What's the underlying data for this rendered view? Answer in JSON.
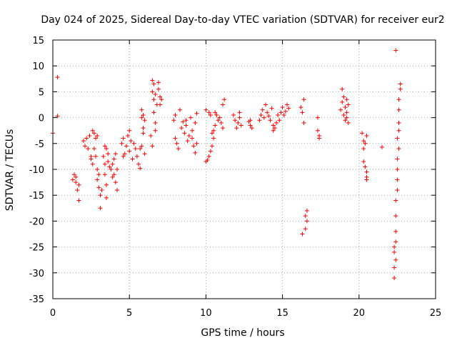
{
  "chart_data": {
    "type": "scatter",
    "title": "Day 024 of 2025, Sidereal Day-to-day VTEC variation (SDTVAR) for receiver eur2",
    "xlabel": "GPS time / hours",
    "ylabel": "SDTVAR / TECUs",
    "xlim": [
      0,
      25
    ],
    "ylim": [
      -35,
      15
    ],
    "xticks": [
      0,
      5,
      10,
      15,
      20,
      25
    ],
    "xtick_labels": [
      "0",
      "5",
      "10",
      "15",
      "20",
      "25"
    ],
    "yticks": [
      15,
      10,
      5,
      0,
      -5,
      -10,
      -15,
      -20,
      -25,
      -30,
      -35
    ],
    "ytick_labels": [
      "15",
      "10",
      "5",
      "0",
      "-5",
      "-10",
      "-15",
      "-20",
      "-25",
      "-30",
      "-35"
    ],
    "grid": true,
    "marker": "+",
    "color": "#ff0000",
    "series": [
      {
        "name": "SDTVAR",
        "points": [
          [
            0.0,
            -3.0
          ],
          [
            0.3,
            7.8
          ],
          [
            0.3,
            0.3
          ],
          [
            1.3,
            -12.0
          ],
          [
            1.4,
            -11.0
          ],
          [
            1.5,
            -12.5
          ],
          [
            1.6,
            -14.0
          ],
          [
            1.7,
            -16.0
          ],
          [
            1.7,
            -13.0
          ],
          [
            1.5,
            -11.5
          ],
          [
            2.0,
            -4.5
          ],
          [
            2.1,
            -5.5
          ],
          [
            2.2,
            -4.0
          ],
          [
            2.3,
            -6.0
          ],
          [
            2.4,
            -3.5
          ],
          [
            2.5,
            -7.5
          ],
          [
            2.6,
            -2.5
          ],
          [
            2.7,
            -3.0
          ],
          [
            2.8,
            -4.0
          ],
          [
            2.9,
            -3.5
          ],
          [
            2.6,
            -9.0
          ],
          [
            2.5,
            -8.0
          ],
          [
            2.7,
            -6.0
          ],
          [
            2.8,
            -7.5
          ],
          [
            2.9,
            -10.0
          ],
          [
            2.9,
            -12.0
          ],
          [
            3.0,
            -13.5
          ],
          [
            3.1,
            -15.0
          ],
          [
            3.1,
            -17.5
          ],
          [
            3.2,
            -14.0
          ],
          [
            3.0,
            -11.0
          ],
          [
            3.3,
            -7.5
          ],
          [
            3.4,
            -5.5
          ],
          [
            3.5,
            -6.0
          ],
          [
            3.4,
            -9.0
          ],
          [
            3.4,
            -11.0
          ],
          [
            3.5,
            -13.0
          ],
          [
            3.5,
            -15.5
          ],
          [
            3.6,
            -7.0
          ],
          [
            3.6,
            -8.5
          ],
          [
            3.7,
            -9.5
          ],
          [
            3.8,
            -10.0
          ],
          [
            3.9,
            -9.0
          ],
          [
            4.0,
            -8.0
          ],
          [
            4.0,
            -11.0
          ],
          [
            4.1,
            -12.5
          ],
          [
            4.2,
            -14.0
          ],
          [
            4.2,
            -10.0
          ],
          [
            4.1,
            -7.0
          ],
          [
            3.9,
            -11.5
          ],
          [
            4.5,
            -5.0
          ],
          [
            4.6,
            -4.0
          ],
          [
            4.7,
            -7.0
          ],
          [
            4.8,
            -5.5
          ],
          [
            4.9,
            -3.5
          ],
          [
            5.0,
            -6.5
          ],
          [
            5.1,
            -4.5
          ],
          [
            5.2,
            -8.0
          ],
          [
            5.0,
            -2.5
          ],
          [
            5.3,
            -5.0
          ],
          [
            5.4,
            -6.0
          ],
          [
            5.5,
            -7.5
          ],
          [
            4.6,
            -7.5
          ],
          [
            5.6,
            -9.0
          ],
          [
            5.7,
            -9.8
          ],
          [
            5.8,
            -5.5
          ],
          [
            5.9,
            -3.0
          ],
          [
            5.9,
            -2.0
          ],
          [
            5.8,
            1.5
          ],
          [
            5.9,
            0.5
          ],
          [
            6.0,
            -0.5
          ],
          [
            6.0,
            -7.0
          ],
          [
            5.7,
            -6.0
          ],
          [
            5.8,
            0.0
          ],
          [
            6.4,
            -3.5
          ],
          [
            6.5,
            5.0
          ],
          [
            6.5,
            7.2
          ],
          [
            6.6,
            6.5
          ],
          [
            6.6,
            3.5
          ],
          [
            6.6,
            1.0
          ],
          [
            6.7,
            -1.0
          ],
          [
            6.7,
            4.5
          ],
          [
            6.8,
            2.5
          ],
          [
            6.9,
            5.5
          ],
          [
            6.9,
            6.8
          ],
          [
            7.0,
            4.0
          ],
          [
            7.0,
            2.5
          ],
          [
            7.1,
            3.5
          ],
          [
            6.5,
            -5.5
          ],
          [
            6.7,
            -2.5
          ],
          [
            7.9,
            -0.5
          ],
          [
            8.0,
            0.5
          ],
          [
            8.0,
            -4.0
          ],
          [
            8.1,
            -5.0
          ],
          [
            8.2,
            -6.0
          ],
          [
            8.3,
            1.5
          ],
          [
            8.4,
            -2.0
          ],
          [
            8.5,
            -0.8
          ],
          [
            8.6,
            -3.0
          ],
          [
            8.7,
            -1.5
          ],
          [
            8.8,
            -4.5
          ],
          [
            8.9,
            -3.5
          ],
          [
            9.0,
            0.0
          ],
          [
            9.1,
            -2.5
          ],
          [
            9.1,
            -4.0
          ],
          [
            9.2,
            -5.5
          ],
          [
            9.3,
            -6.8
          ],
          [
            9.3,
            -1.0
          ],
          [
            9.4,
            0.8
          ],
          [
            9.4,
            -5.0
          ],
          [
            8.7,
            -0.5
          ],
          [
            10.0,
            -8.5
          ],
          [
            10.1,
            -8.2
          ],
          [
            10.2,
            -7.5
          ],
          [
            10.3,
            -6.5
          ],
          [
            10.4,
            -5.5
          ],
          [
            10.5,
            -4.0
          ],
          [
            10.5,
            -2.5
          ],
          [
            10.6,
            -1.5
          ],
          [
            10.0,
            1.5
          ],
          [
            10.3,
            0.5
          ],
          [
            10.6,
            1.0
          ],
          [
            10.7,
            0.5
          ],
          [
            10.8,
            -0.5
          ],
          [
            10.9,
            0.0
          ],
          [
            11.0,
            -1.0
          ],
          [
            11.1,
            -2.0
          ],
          [
            11.1,
            2.5
          ],
          [
            11.2,
            3.5
          ],
          [
            10.4,
            -3.0
          ],
          [
            10.2,
            1.0
          ],
          [
            11.8,
            0.5
          ],
          [
            11.9,
            -0.5
          ],
          [
            12.0,
            -2.0
          ],
          [
            12.1,
            -1.0
          ],
          [
            12.2,
            0.0
          ],
          [
            12.3,
            -1.5
          ],
          [
            12.2,
            1.0
          ],
          [
            12.8,
            -0.8
          ],
          [
            12.9,
            -1.5
          ],
          [
            13.0,
            -2.0
          ],
          [
            12.9,
            -0.5
          ],
          [
            13.5,
            -0.5
          ],
          [
            13.6,
            0.5
          ],
          [
            13.7,
            1.5
          ],
          [
            13.8,
            0.0
          ],
          [
            13.9,
            2.5
          ],
          [
            14.0,
            1.0
          ],
          [
            14.1,
            0.3
          ],
          [
            14.2,
            -0.5
          ],
          [
            14.3,
            1.8
          ],
          [
            14.4,
            -1.5
          ],
          [
            14.5,
            -2.0
          ],
          [
            14.6,
            -1.0
          ],
          [
            14.7,
            0.5
          ],
          [
            14.8,
            -0.5
          ],
          [
            14.9,
            1.0
          ],
          [
            15.0,
            2.0
          ],
          [
            15.1,
            0.5
          ],
          [
            15.2,
            1.2
          ],
          [
            15.3,
            2.5
          ],
          [
            15.4,
            1.8
          ],
          [
            14.4,
            -2.5
          ],
          [
            16.2,
            2.0
          ],
          [
            16.3,
            1.0
          ],
          [
            16.4,
            3.5
          ],
          [
            16.4,
            -1.0
          ],
          [
            16.3,
            -22.5
          ],
          [
            16.5,
            -21.5
          ],
          [
            16.5,
            -19.0
          ],
          [
            16.6,
            -18.0
          ],
          [
            16.6,
            -20.0
          ],
          [
            17.3,
            0.0
          ],
          [
            17.3,
            -2.5
          ],
          [
            17.4,
            -3.5
          ],
          [
            17.4,
            -4.0
          ],
          [
            18.8,
            1.5
          ],
          [
            18.9,
            3.0
          ],
          [
            18.9,
            5.5
          ],
          [
            19.0,
            4.0
          ],
          [
            19.0,
            0.5
          ],
          [
            19.1,
            2.0
          ],
          [
            19.1,
            -0.5
          ],
          [
            19.2,
            3.5
          ],
          [
            19.2,
            1.0
          ],
          [
            19.3,
            -1.0
          ],
          [
            19.3,
            2.5
          ],
          [
            19.2,
            0.0
          ],
          [
            20.2,
            -3.0
          ],
          [
            20.3,
            -4.5
          ],
          [
            20.3,
            -6.0
          ],
          [
            20.3,
            -8.5
          ],
          [
            20.4,
            -9.5
          ],
          [
            20.4,
            -5.0
          ],
          [
            20.5,
            -10.5
          ],
          [
            20.5,
            -11.5
          ],
          [
            20.5,
            -12.0
          ],
          [
            20.5,
            -3.5
          ],
          [
            21.5,
            -5.7
          ],
          [
            22.4,
            13.0
          ],
          [
            22.3,
            -31.0
          ],
          [
            22.3,
            -29.0
          ],
          [
            22.3,
            -26.0
          ],
          [
            22.4,
            -24.0
          ],
          [
            22.4,
            -22.0
          ],
          [
            22.4,
            -19.0
          ],
          [
            22.4,
            -16.0
          ],
          [
            22.5,
            -12.0
          ],
          [
            22.5,
            -8.0
          ],
          [
            22.5,
            -4.0
          ],
          [
            22.6,
            -1.0
          ],
          [
            22.6,
            1.5
          ],
          [
            22.6,
            3.5
          ],
          [
            22.7,
            5.5
          ],
          [
            22.7,
            6.5
          ],
          [
            22.4,
            -27.5
          ],
          [
            22.3,
            -25.0
          ],
          [
            22.5,
            -14.0
          ],
          [
            22.5,
            -10.0
          ],
          [
            22.6,
            -6.0
          ],
          [
            22.6,
            -2.5
          ]
        ]
      }
    ]
  }
}
